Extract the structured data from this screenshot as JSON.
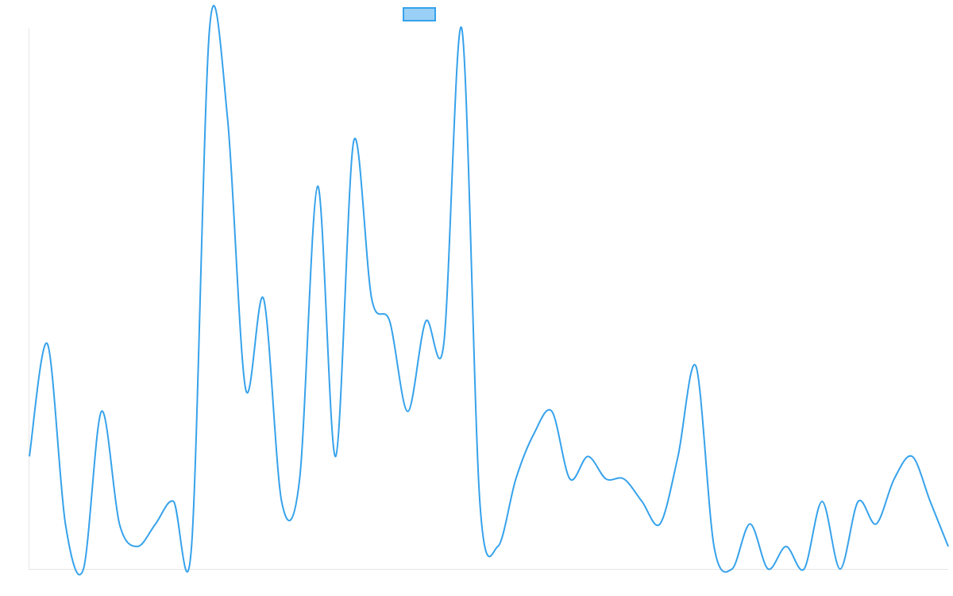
{
  "chart_data": {
    "type": "line",
    "categories": [
      null,
      null,
      null,
      null,
      null,
      null,
      null,
      null,
      null,
      null,
      null,
      null,
      null,
      null,
      null,
      null,
      null,
      null,
      null,
      null,
      null,
      null,
      null,
      null,
      null,
      null,
      null,
      null,
      null,
      null,
      null,
      null,
      null,
      null,
      null,
      null,
      null,
      null,
      null,
      null,
      null,
      null,
      null,
      null,
      null,
      null,
      null,
      null,
      null,
      null,
      null,
      null
    ],
    "series": [
      {
        "color": "#36a2eb",
        "values": [
          5,
          10,
          2,
          0,
          7,
          2,
          1,
          2,
          3,
          1,
          24,
          20,
          8,
          12,
          3,
          4,
          17,
          5,
          19,
          12,
          11,
          7,
          11,
          10,
          24,
          3,
          1,
          4,
          6,
          7,
          4,
          5,
          4,
          4,
          3,
          2,
          5,
          9,
          1,
          0,
          2,
          0,
          1,
          0,
          3,
          0,
          3,
          2,
          4,
          5,
          3,
          1
        ]
      }
    ],
    "ylim": [
      0,
      24
    ]
  }
}
